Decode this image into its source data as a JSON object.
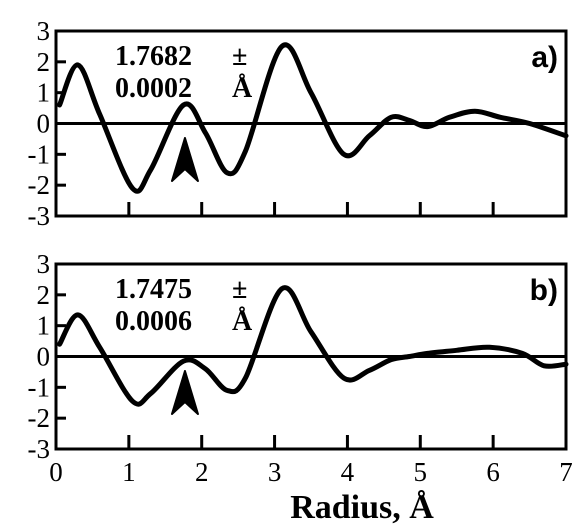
{
  "chart_data": [
    {
      "type": "line",
      "panel_label": "a)",
      "annotation": {
        "value": "1.7682",
        "pm": "±",
        "error": "0.0002",
        "unit": "Å"
      },
      "arrow_x": 1.77,
      "xlim": [
        0,
        7
      ],
      "ylim": [
        -3,
        3
      ],
      "xticks": [
        0,
        1,
        2,
        3,
        4,
        5,
        6,
        7
      ],
      "yticks": [
        3,
        2,
        1,
        0,
        -1,
        -2,
        -3
      ],
      "zero_line": true,
      "x": [
        0.05,
        0.3,
        0.6,
        1.05,
        1.3,
        1.75,
        2.05,
        2.35,
        2.6,
        3.1,
        3.5,
        3.95,
        4.3,
        4.6,
        4.85,
        5.1,
        5.4,
        5.75,
        6.1,
        6.5,
        7.0
      ],
      "y": [
        0.6,
        1.9,
        0.3,
        -2.1,
        -1.5,
        0.6,
        -0.3,
        -1.6,
        -0.9,
        2.5,
        1.0,
        -1.0,
        -0.4,
        0.2,
        0.1,
        -0.1,
        0.2,
        0.4,
        0.2,
        0.0,
        -0.4
      ]
    },
    {
      "type": "line",
      "panel_label": "b)",
      "annotation": {
        "value": "1.7475",
        "pm": "±",
        "error": "0.0006",
        "unit": "Å"
      },
      "arrow_x": 1.77,
      "xlim": [
        0,
        7
      ],
      "ylim": [
        -3,
        3
      ],
      "xticks": [
        0,
        1,
        2,
        3,
        4,
        5,
        6,
        7
      ],
      "yticks": [
        3,
        2,
        1,
        0,
        -1,
        -2,
        -3
      ],
      "zero_line": true,
      "x": [
        0.05,
        0.3,
        0.6,
        1.05,
        1.3,
        1.75,
        2.05,
        2.35,
        2.6,
        3.1,
        3.5,
        3.95,
        4.3,
        4.6,
        4.85,
        5.1,
        5.5,
        5.95,
        6.4,
        6.7,
        7.0
      ],
      "y": [
        0.4,
        1.35,
        0.3,
        -1.45,
        -1.2,
        -0.15,
        -0.4,
        -1.1,
        -0.7,
        2.2,
        0.8,
        -0.7,
        -0.45,
        -0.1,
        0.0,
        0.1,
        0.2,
        0.3,
        0.1,
        -0.3,
        -0.25
      ]
    }
  ],
  "xlabel": "Radius,  Å"
}
